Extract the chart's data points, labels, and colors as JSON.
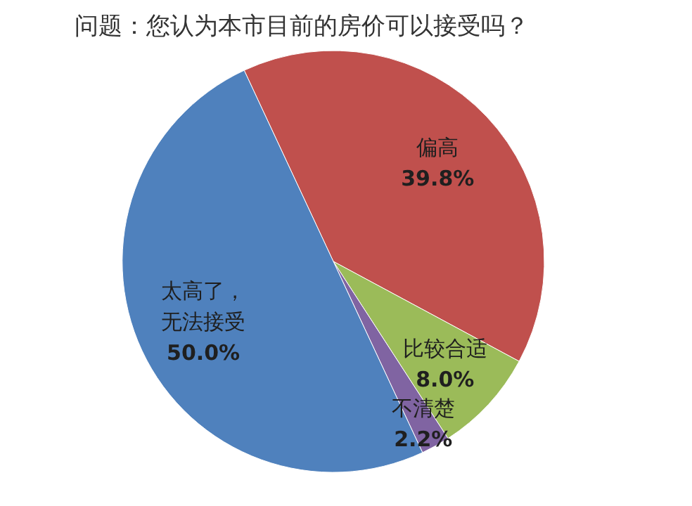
{
  "chart_data": {
    "type": "pie",
    "title": "问题：您认为本市目前的房价可以接受吗？",
    "categories": [
      "偏高",
      "比较合适",
      "不清楚",
      "太高了，无法接受"
    ],
    "values": [
      39.8,
      8.0,
      2.2,
      50.0
    ],
    "value_labels": [
      "39.8%",
      "8.0%",
      "2.2%",
      "50.0%"
    ],
    "colors": [
      "#c0504d",
      "#9bbb59",
      "#8064a2",
      "#4f81bd"
    ]
  }
}
